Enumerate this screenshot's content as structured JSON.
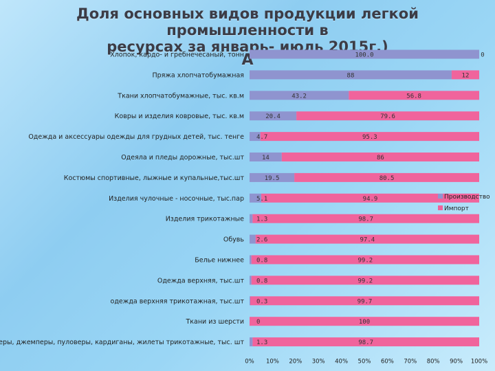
{
  "title": {
    "line1": "Доля основных видов продукции легкой промышленности в",
    "line2": "ресурсах за январь- июль 2015г.)",
    "line3": "А"
  },
  "chart_data": {
    "type": "bar",
    "orientation": "horizontal",
    "stacked": true,
    "categories": [
      "Хлопок, кардо- и гребнечесаный, тонн",
      "Пряжа хлопчатобумажная",
      "Ткани хлопчатобумажные, тыс. кв.м",
      "Ковры и изделия ковровые, тыс. кв.м",
      "Одежда и аксессуары одежды для грудных детей, тыс. тенге",
      "Одеяла и пледы дорожные, тыс.шт",
      "Костюмы спортивные, лыжные и купальные,тыс.шт",
      "Изделия чулочные - носочные, тыс.пар",
      "Изделия трикотажные",
      "Обувь",
      "Белье нижнее",
      "Одежда верхняя, тыс.шт",
      "одежда верхняя трикотажная, тыс.шт",
      "Ткани из шерсти",
      "Свитеры, джемперы, пуловеры, кардиганы, жилеты трикотажные, тыс. шт"
    ],
    "series": [
      {
        "name": "Производство",
        "color": "#8f94cf",
        "values": [
          100.0,
          88,
          43.2,
          20.4,
          4.7,
          14,
          19.5,
          5.1,
          1.3,
          2.6,
          0.8,
          0.8,
          0.3,
          0,
          1.3
        ],
        "labels": [
          "100.0",
          "88",
          "43.2",
          "20.4",
          "4.7",
          "14",
          "19.5",
          "5.1",
          "1.3",
          "2.6",
          "0.8",
          "0.8",
          "0.3",
          "0",
          "1.3"
        ]
      },
      {
        "name": "Импорт",
        "color": "#f0649c",
        "values": [
          0,
          12,
          56.8,
          79.6,
          95.3,
          86,
          80.5,
          94.9,
          98.7,
          97.4,
          99.2,
          99.2,
          99.7,
          100,
          98.7
        ],
        "labels": [
          "0",
          "12",
          "56.8",
          "79.6",
          "95.3",
          "86",
          "80.5",
          "94.9",
          "98.7",
          "97.4",
          "99.2",
          "99.2",
          "99.7",
          "100",
          "98.7"
        ]
      }
    ],
    "x_ticks": [
      "0%",
      "10%",
      "20%",
      "30%",
      "40%",
      "50%",
      "60%",
      "70%",
      "80%",
      "90%",
      "100%"
    ],
    "xlim": [
      0,
      100
    ],
    "grid": false,
    "legend_position": "right"
  }
}
